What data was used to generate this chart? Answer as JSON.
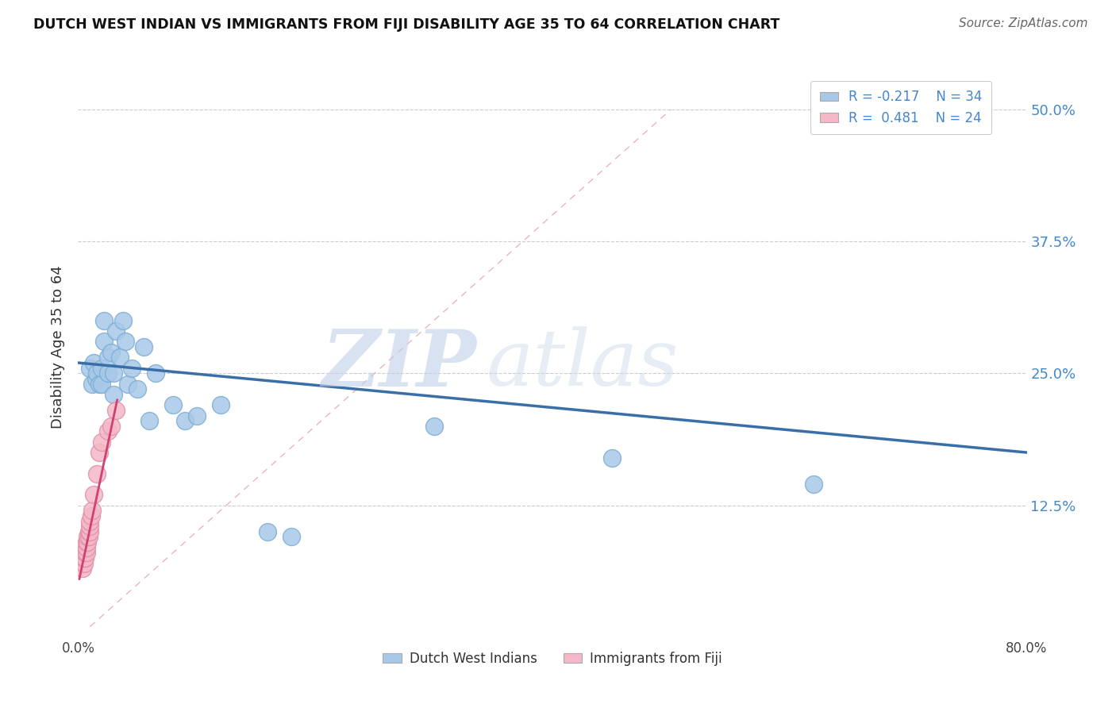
{
  "title": "DUTCH WEST INDIAN VS IMMIGRANTS FROM FIJI DISABILITY AGE 35 TO 64 CORRELATION CHART",
  "source_text": "Source: ZipAtlas.com",
  "ylabel": "Disability Age 35 to 64",
  "xlim": [
    0.0,
    0.8
  ],
  "ylim": [
    0.0,
    0.55
  ],
  "xticks": [
    0.0,
    0.2,
    0.4,
    0.6,
    0.8
  ],
  "xticklabels": [
    "0.0%",
    "",
    "",
    "",
    "80.0%"
  ],
  "ytick_positions": [
    0.125,
    0.25,
    0.375,
    0.5
  ],
  "ytick_labels": [
    "12.5%",
    "25.0%",
    "37.5%",
    "50.0%"
  ],
  "legend_r1": "R = -0.217",
  "legend_n1": "N = 34",
  "legend_r2": "R =  0.481",
  "legend_n2": "N = 24",
  "color_blue": "#a8c8e8",
  "color_blue_edge": "#7badd4",
  "color_pink": "#f4b8c8",
  "color_pink_edge": "#e090a8",
  "color_blue_line": "#3a6ea8",
  "color_pink_line": "#d04070",
  "watermark_zip": "ZIP",
  "watermark_atlas": "atlas",
  "background_color": "#ffffff",
  "dutch_west_x": [
    0.01,
    0.012,
    0.013,
    0.015,
    0.016,
    0.018,
    0.02,
    0.02,
    0.022,
    0.022,
    0.025,
    0.025,
    0.028,
    0.03,
    0.03,
    0.032,
    0.035,
    0.038,
    0.04,
    0.042,
    0.045,
    0.05,
    0.055,
    0.06,
    0.065,
    0.08,
    0.09,
    0.1,
    0.12,
    0.16,
    0.18,
    0.3,
    0.45,
    0.62
  ],
  "dutch_west_y": [
    0.255,
    0.24,
    0.26,
    0.245,
    0.25,
    0.24,
    0.255,
    0.24,
    0.28,
    0.3,
    0.25,
    0.265,
    0.27,
    0.23,
    0.25,
    0.29,
    0.265,
    0.3,
    0.28,
    0.24,
    0.255,
    0.235,
    0.275,
    0.205,
    0.25,
    0.22,
    0.205,
    0.21,
    0.22,
    0.1,
    0.095,
    0.2,
    0.17,
    0.145
  ],
  "fiji_x": [
    0.004,
    0.005,
    0.005,
    0.006,
    0.006,
    0.007,
    0.007,
    0.007,
    0.008,
    0.008,
    0.009,
    0.009,
    0.01,
    0.01,
    0.01,
    0.011,
    0.012,
    0.013,
    0.016,
    0.018,
    0.02,
    0.025,
    0.028,
    0.032
  ],
  "fiji_y": [
    0.065,
    0.07,
    0.075,
    0.075,
    0.08,
    0.08,
    0.085,
    0.09,
    0.09,
    0.095,
    0.095,
    0.1,
    0.1,
    0.105,
    0.11,
    0.115,
    0.12,
    0.135,
    0.155,
    0.175,
    0.185,
    0.195,
    0.2,
    0.215
  ],
  "blue_trend_x": [
    0.0,
    0.8
  ],
  "blue_trend_y": [
    0.26,
    0.175
  ],
  "pink_trend_x": [
    0.001,
    0.033
  ],
  "pink_trend_y": [
    0.055,
    0.225
  ],
  "diag_line_x": [
    0.01,
    0.5
  ],
  "diag_line_y": [
    0.01,
    0.5
  ]
}
